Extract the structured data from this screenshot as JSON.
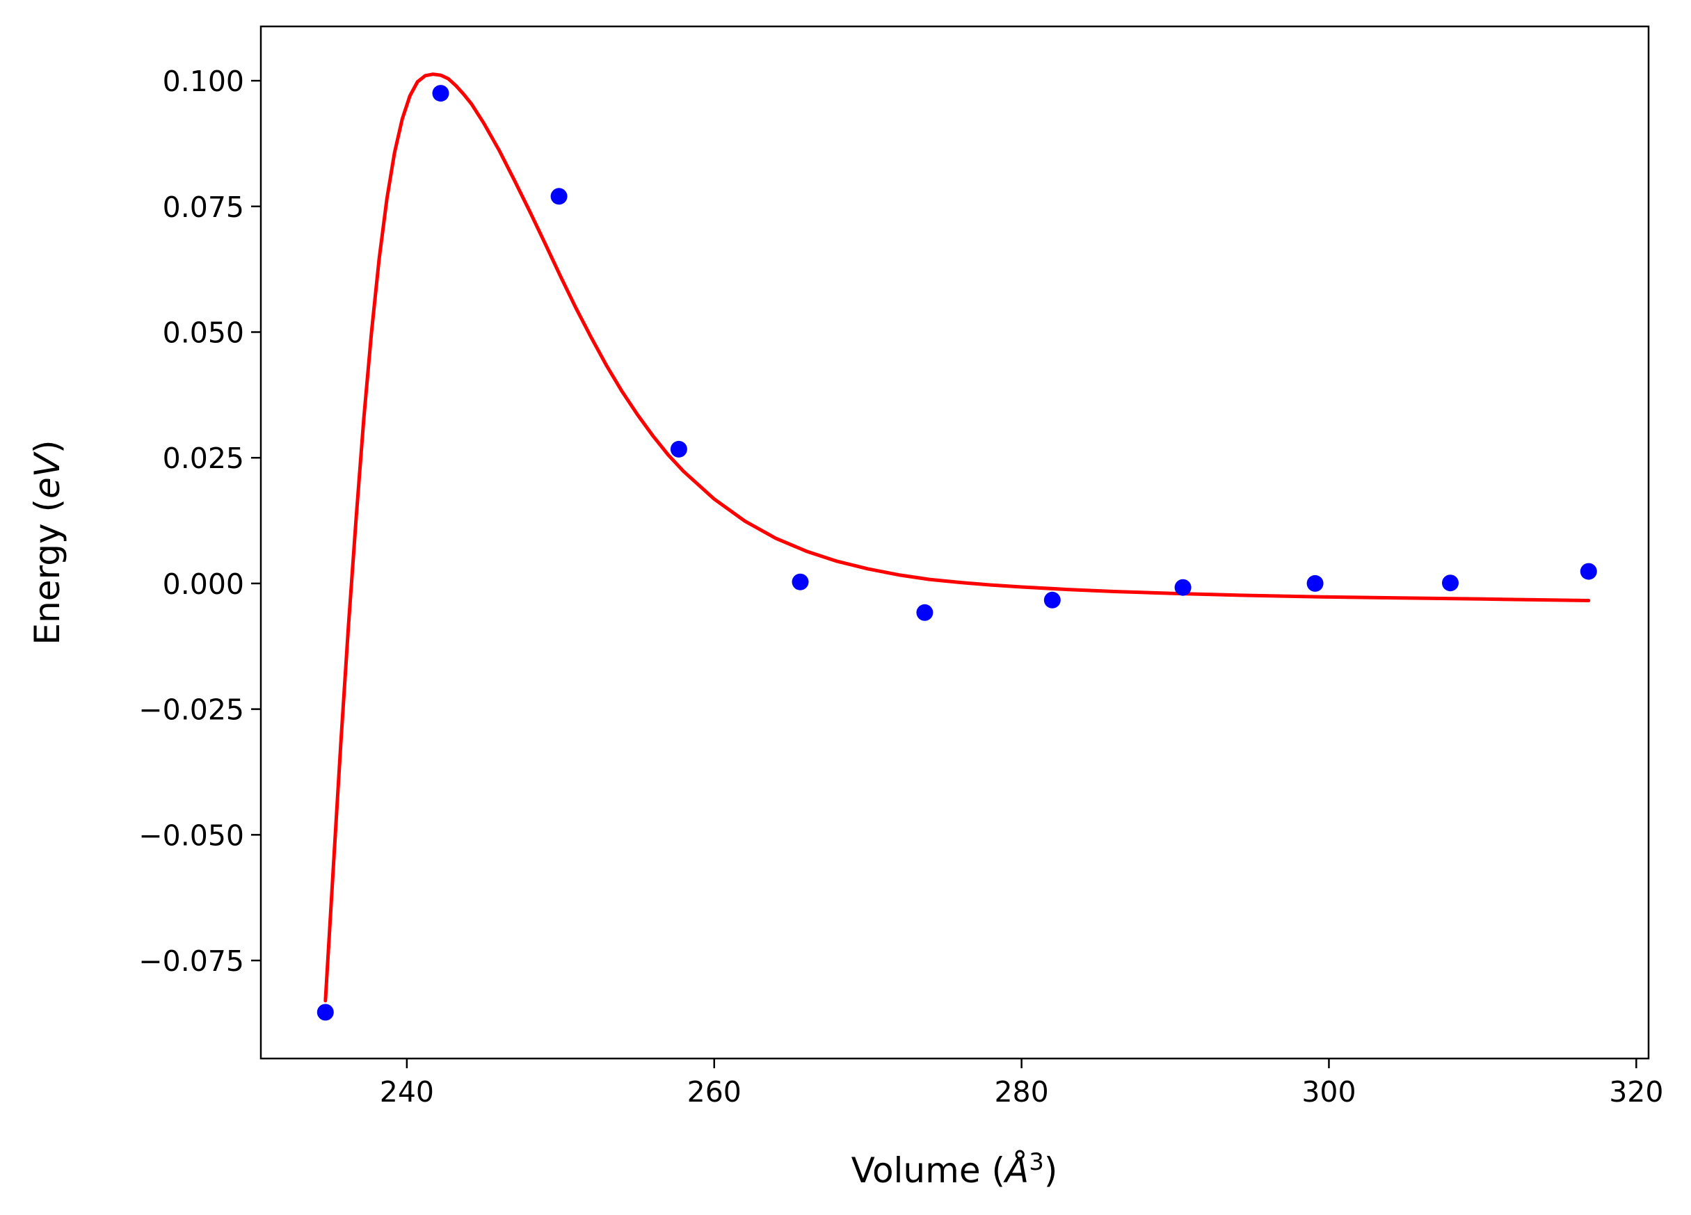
{
  "chart_data": {
    "type": "scatter",
    "xlabel_parts": {
      "pre": "Volume (",
      "symbol": "Å",
      "sup": "3",
      "post": ")"
    },
    "ylabel_parts": {
      "pre": "Energy (",
      "symbol": "eV",
      "post": ")"
    },
    "xlim": [
      230.5,
      320.8
    ],
    "ylim": [
      -0.0945,
      0.1108
    ],
    "x_ticks": [
      240,
      260,
      280,
      300,
      320
    ],
    "x_tick_labels": [
      "240",
      "260",
      "280",
      "300",
      "320"
    ],
    "y_ticks": [
      0.1,
      0.075,
      0.05,
      0.025,
      0.0,
      -0.025,
      -0.05,
      -0.075
    ],
    "y_tick_labels": [
      "0.100",
      "0.075",
      "0.050",
      "0.025",
      "0.000",
      "−0.025",
      "−0.050",
      "−0.075"
    ],
    "grid": false,
    "series": [
      {
        "kind": "points",
        "color": "#0000ff",
        "x": [
          234.7,
          242.2,
          249.9,
          257.7,
          265.6,
          273.7,
          282.0,
          290.5,
          299.1,
          307.9,
          316.9
        ],
        "y": [
          -0.0853,
          0.0975,
          0.077,
          0.0267,
          0.0003,
          -0.0058,
          -0.0033,
          -0.0008,
          0.0,
          0.0001,
          0.0024
        ]
      },
      {
        "kind": "fit-line",
        "color": "#ff0000",
        "x": [
          234.7,
          235.2,
          235.7,
          236.2,
          236.7,
          237.2,
          237.7,
          238.2,
          238.7,
          239.2,
          239.7,
          240.2,
          240.7,
          241.2,
          241.7,
          242.2,
          242.7,
          243.2,
          243.7,
          244.2,
          245.0,
          246.0,
          247.0,
          248.0,
          249.0,
          250.0,
          251.0,
          252.0,
          253.0,
          254.0,
          255.0,
          256.0,
          257.0,
          258.0,
          260.0,
          262.0,
          264.0,
          266.0,
          268.0,
          270.0,
          272.0,
          274.0,
          276.0,
          278.0,
          280.0,
          283.0,
          286.0,
          290.0,
          295.0,
          300.0,
          305.0,
          310.0,
          316.9
        ],
        "y": [
          -0.083,
          -0.0574,
          -0.0319,
          -0.0085,
          0.013,
          0.0328,
          0.05,
          0.0646,
          0.0765,
          0.0857,
          0.0924,
          0.097,
          0.0998,
          0.101,
          0.1013,
          0.1011,
          0.1004,
          0.099,
          0.0973,
          0.0954,
          0.0916,
          0.0862,
          0.0802,
          0.074,
          0.0676,
          0.0611,
          0.0548,
          0.0489,
          0.0433,
          0.0382,
          0.0336,
          0.0294,
          0.0256,
          0.0223,
          0.0168,
          0.0124,
          0.009,
          0.0064,
          0.0044,
          0.0029,
          0.0017,
          0.0008,
          0.0002,
          -0.0003,
          -0.0007,
          -0.0012,
          -0.0016,
          -0.002,
          -0.0024,
          -0.0027,
          -0.0029,
          -0.0031,
          -0.0034
        ]
      }
    ]
  }
}
